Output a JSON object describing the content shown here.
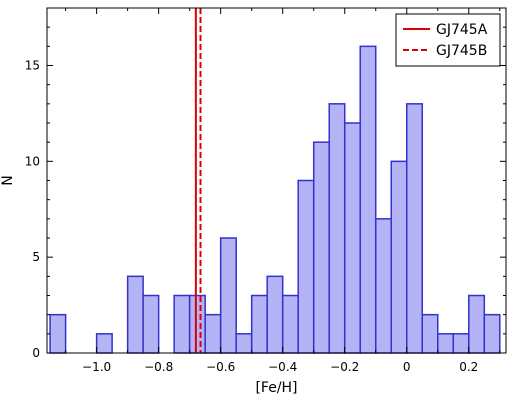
{
  "chart_data": {
    "type": "bar",
    "xlabel": "[Fe/H]",
    "ylabel": "N",
    "xlim": [
      -1.16,
      0.32
    ],
    "ylim": [
      0,
      18
    ],
    "grid": false,
    "bin_width": 0.05,
    "bin_starts": [
      -1.15,
      -0.9,
      -0.85,
      -0.75,
      -0.7,
      -0.65,
      -0.6,
      -0.55,
      -0.5,
      -0.45,
      -0.4,
      -0.35,
      -0.3,
      -0.25,
      -0.2,
      -0.15,
      -0.1,
      -0.05,
      0.0,
      0.05,
      0.1,
      0.15,
      0.2,
      0.25,
      -1.0
    ],
    "values": [
      2,
      4,
      3,
      3,
      3,
      2,
      6,
      1,
      3,
      4,
      3,
      9,
      11,
      13,
      12,
      16,
      7,
      10,
      13,
      2,
      1,
      1,
      3,
      2,
      1
    ],
    "xticks": [
      -1.0,
      -0.8,
      -0.6,
      -0.4,
      -0.2,
      0.0,
      0.2
    ],
    "xtick_labels": [
      "−1.0",
      "−0.8",
      "−0.6",
      "−0.4",
      "−0.2",
      "0",
      "0.2"
    ],
    "yticks": [
      0,
      5,
      10,
      15
    ],
    "ytick_labels": [
      "0",
      "5",
      "10",
      "15"
    ],
    "bar_fill": "#b3b3f5",
    "bar_edge": "#3333cc",
    "vlines": [
      {
        "name": "GJ745A",
        "x": -0.68,
        "style": "solid",
        "color": "#dd0000"
      },
      {
        "name": "GJ745B",
        "x": -0.665,
        "style": "dashed",
        "color": "#dd0000"
      }
    ],
    "legend": {
      "placement": "top-right",
      "entries": [
        "GJ745A",
        "GJ745B"
      ]
    }
  }
}
